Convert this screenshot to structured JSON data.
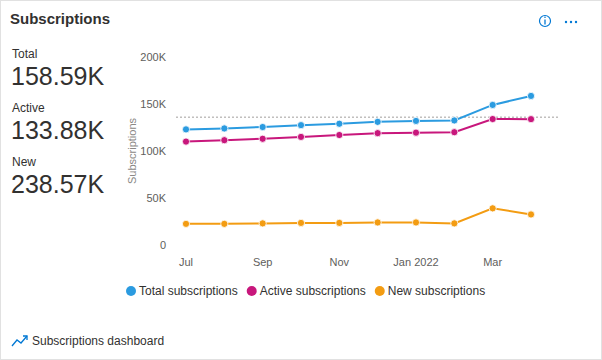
{
  "chart_data": {
    "type": "line",
    "title": "Subscriptions",
    "y_label": "Subscriptions",
    "categories": [
      "Jul",
      null,
      "Sep",
      null,
      "Nov",
      null,
      "Jan 2022",
      null,
      "Mar",
      null
    ],
    "series": [
      {
        "name": "Total subscriptions",
        "color": "#2b9be0",
        "marker": "circle",
        "line_style": "solid",
        "values": [
          123000,
          124000,
          125500,
          127500,
          129000,
          131000,
          132000,
          132500,
          149000,
          158590
        ]
      },
      {
        "name": "Active subscriptions",
        "color": "#c8177c",
        "marker": "circle",
        "line_style": "solid",
        "values": [
          110000,
          111500,
          113000,
          115000,
          117000,
          119000,
          119500,
          120000,
          134000,
          133880
        ]
      },
      {
        "name": "New subscriptions",
        "color": "#f39c12",
        "marker": "circle",
        "line_style": "solid",
        "values": [
          22500,
          22500,
          23000,
          23500,
          23500,
          24000,
          24000,
          23000,
          39000,
          32500
        ]
      }
    ],
    "reference_value": 136000,
    "ylim": [
      0,
      200000
    ],
    "yticks": [
      0,
      {
        "value": 50000,
        "label": "50K"
      },
      {
        "value": 100000,
        "label": "100K"
      },
      {
        "value": 150000,
        "label": "150K"
      },
      {
        "value": 200000,
        "label": "200K"
      }
    ],
    "grid": false
  },
  "kpis": [
    {
      "label": "Total",
      "value": "158.59K"
    },
    {
      "label": "Active",
      "value": "133.88K"
    },
    {
      "label": "New",
      "value": "238.57K"
    }
  ],
  "footer_link": "Subscriptions dashboard"
}
